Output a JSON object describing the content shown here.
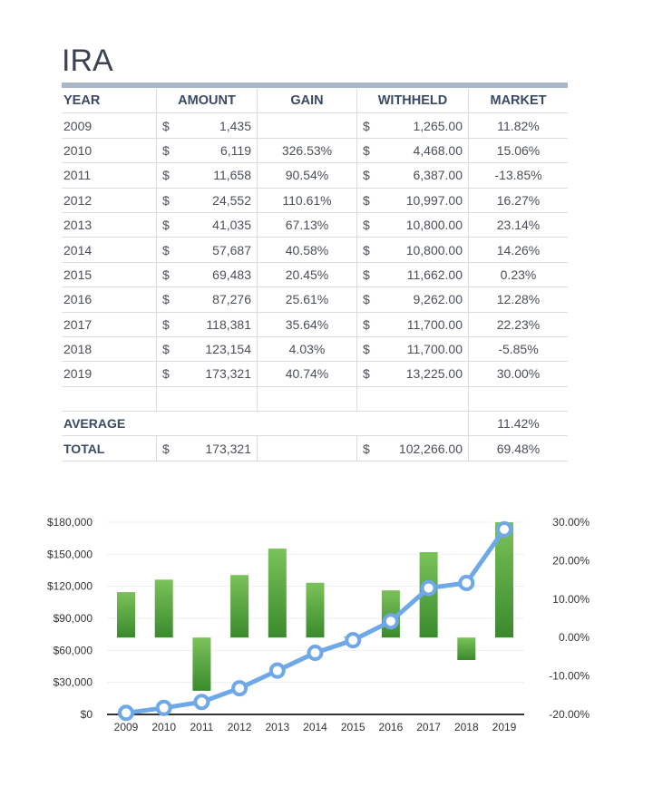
{
  "title": "IRA",
  "columns": [
    "YEAR",
    "AMOUNT",
    "GAIN",
    "WITHHELD",
    "MARKET"
  ],
  "rows": [
    {
      "year": "2009",
      "amount": "1,435",
      "gain": "",
      "withheld": "1,265.00",
      "market": "11.82%"
    },
    {
      "year": "2010",
      "amount": "6,119",
      "gain": "326.53%",
      "withheld": "4,468.00",
      "market": "15.06%"
    },
    {
      "year": "2011",
      "amount": "11,658",
      "gain": "90.54%",
      "withheld": "6,387.00",
      "market": "-13.85%"
    },
    {
      "year": "2012",
      "amount": "24,552",
      "gain": "110.61%",
      "withheld": "10,997.00",
      "market": "16.27%"
    },
    {
      "year": "2013",
      "amount": "41,035",
      "gain": "67.13%",
      "withheld": "10,800.00",
      "market": "23.14%"
    },
    {
      "year": "2014",
      "amount": "57,687",
      "gain": "40.58%",
      "withheld": "10,800.00",
      "market": "14.26%"
    },
    {
      "year": "2015",
      "amount": "69,483",
      "gain": "20.45%",
      "withheld": "11,662.00",
      "market": "0.23%"
    },
    {
      "year": "2016",
      "amount": "87,276",
      "gain": "25.61%",
      "withheld": "9,262.00",
      "market": "12.28%"
    },
    {
      "year": "2017",
      "amount": "118,381",
      "gain": "35.64%",
      "withheld": "11,700.00",
      "market": "22.23%"
    },
    {
      "year": "2018",
      "amount": "123,154",
      "gain": "4.03%",
      "withheld": "11,700.00",
      "market": "-5.85%"
    },
    {
      "year": "2019",
      "amount": "173,321",
      "gain": "40.74%",
      "withheld": "13,225.00",
      "market": "30.00%"
    }
  ],
  "currency": "$",
  "average": {
    "label": "AVERAGE",
    "market": "11.42%"
  },
  "total": {
    "label": "TOTAL",
    "amount": "173,321",
    "withheld": "102,266.00",
    "market": "69.48%"
  },
  "chart_data": {
    "type": "bar+line",
    "categories": [
      "2009",
      "2010",
      "2011",
      "2012",
      "2013",
      "2014",
      "2015",
      "2016",
      "2017",
      "2018",
      "2019"
    ],
    "series": [
      {
        "kind": "bar",
        "axis": "right",
        "values": [
          11.82,
          15.06,
          -13.85,
          16.27,
          23.14,
          14.26,
          0.23,
          12.28,
          22.23,
          -5.85,
          30.0
        ],
        "color": "#4e9e3a"
      },
      {
        "kind": "line",
        "axis": "left",
        "values": [
          1435,
          6119,
          11658,
          24552,
          41035,
          57687,
          69483,
          87276,
          118381,
          123154,
          173321
        ],
        "color": "#6fa8e6"
      }
    ],
    "left_axis": {
      "ylim": [
        0,
        180000
      ],
      "ticks": [
        "$0",
        "$30,000",
        "$60,000",
        "$90,000",
        "$120,000",
        "$150,000",
        "$180,000"
      ]
    },
    "right_axis": {
      "ylim": [
        -20,
        30
      ],
      "ticks": [
        "-20.00%",
        "-10.00%",
        "0.00%",
        "10.00%",
        "20.00%",
        "30.00%"
      ]
    },
    "grid": true
  }
}
